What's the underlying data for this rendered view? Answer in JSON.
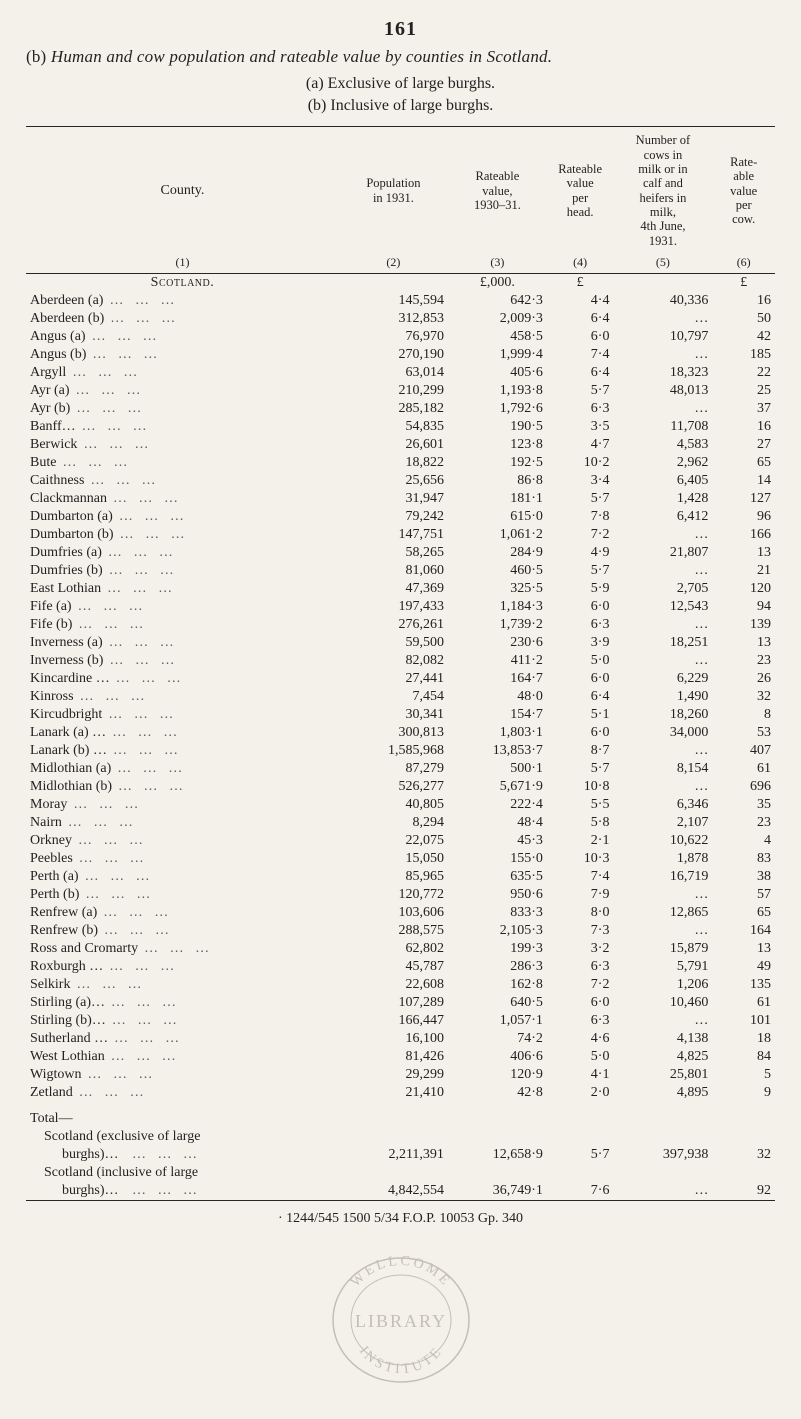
{
  "page_number": "161",
  "title_prefix": "(b) ",
  "title_italic": "Human and cow population and rateable value by counties in Scotland.",
  "subtitle_lines": [
    "(a) Exclusive of large burghs.",
    "(b) Inclusive of large burghs."
  ],
  "columns": {
    "county": "County.",
    "pop": "Population\nin 1931.",
    "rateable_value": "Rateable\nvalue,\n1930–31.",
    "rateable_per_head": "Rateable\nvalue\nper\nhead.",
    "cows": "Number of\ncows in\nmilk or in\ncalf and\nheifers in\nmilk,\n4th June,\n1931.",
    "rate_per_cow": "Rate-\nable\nvalue\nper\ncow."
  },
  "col_index": [
    "(1)",
    "(2)",
    "(3)",
    "(4)",
    "(5)",
    "(6)"
  ],
  "currency_row": [
    "",
    "",
    "£,000.",
    "£",
    "",
    "£"
  ],
  "scotland_label": "Scotland.",
  "rows": [
    {
      "name": "Aberdeen (a)",
      "pop": "145,594",
      "rv": "642·3",
      "ph": "4·4",
      "cows": "40,336",
      "pc": "16"
    },
    {
      "name": "Aberdeen (b)",
      "pop": "312,853",
      "rv": "2,009·3",
      "ph": "6·4",
      "cows": "…",
      "pc": "50"
    },
    {
      "name": "Angus (a)",
      "pop": "76,970",
      "rv": "458·5",
      "ph": "6·0",
      "cows": "10,797",
      "pc": "42"
    },
    {
      "name": "Angus (b)",
      "pop": "270,190",
      "rv": "1,999·4",
      "ph": "7·4",
      "cows": "…",
      "pc": "185"
    },
    {
      "name": "Argyll",
      "pop": "63,014",
      "rv": "405·6",
      "ph": "6·4",
      "cows": "18,323",
      "pc": "22"
    },
    {
      "name": "Ayr (a)",
      "pop": "210,299",
      "rv": "1,193·8",
      "ph": "5·7",
      "cows": "48,013",
      "pc": "25"
    },
    {
      "name": "Ayr (b)",
      "pop": "285,182",
      "rv": "1,792·6",
      "ph": "6·3",
      "cows": "…",
      "pc": "37"
    },
    {
      "name": "Banff…",
      "pop": "54,835",
      "rv": "190·5",
      "ph": "3·5",
      "cows": "11,708",
      "pc": "16"
    },
    {
      "name": "Berwick",
      "pop": "26,601",
      "rv": "123·8",
      "ph": "4·7",
      "cows": "4,583",
      "pc": "27"
    },
    {
      "name": "Bute",
      "pop": "18,822",
      "rv": "192·5",
      "ph": "10·2",
      "cows": "2,962",
      "pc": "65"
    },
    {
      "name": "Caithness",
      "pop": "25,656",
      "rv": "86·8",
      "ph": "3·4",
      "cows": "6,405",
      "pc": "14"
    },
    {
      "name": "Clackmannan",
      "pop": "31,947",
      "rv": "181·1",
      "ph": "5·7",
      "cows": "1,428",
      "pc": "127"
    },
    {
      "name": "Dumbarton (a)",
      "pop": "79,242",
      "rv": "615·0",
      "ph": "7·8",
      "cows": "6,412",
      "pc": "96"
    },
    {
      "name": "Dumbarton (b)",
      "pop": "147,751",
      "rv": "1,061·2",
      "ph": "7·2",
      "cows": "…",
      "pc": "166"
    },
    {
      "name": "Dumfries (a)",
      "pop": "58,265",
      "rv": "284·9",
      "ph": "4·9",
      "cows": "21,807",
      "pc": "13"
    },
    {
      "name": "Dumfries (b)",
      "pop": "81,060",
      "rv": "460·5",
      "ph": "5·7",
      "cows": "…",
      "pc": "21"
    },
    {
      "name": "East Lothian",
      "pop": "47,369",
      "rv": "325·5",
      "ph": "5·9",
      "cows": "2,705",
      "pc": "120"
    },
    {
      "name": "Fife (a)",
      "pop": "197,433",
      "rv": "1,184·3",
      "ph": "6·0",
      "cows": "12,543",
      "pc": "94"
    },
    {
      "name": "Fife (b)",
      "pop": "276,261",
      "rv": "1,739·2",
      "ph": "6·3",
      "cows": "…",
      "pc": "139"
    },
    {
      "name": "Inverness (a)",
      "pop": "59,500",
      "rv": "230·6",
      "ph": "3·9",
      "cows": "18,251",
      "pc": "13"
    },
    {
      "name": "Inverness (b)",
      "pop": "82,082",
      "rv": "411·2",
      "ph": "5·0",
      "cows": "…",
      "pc": "23"
    },
    {
      "name": "Kincardine …",
      "pop": "27,441",
      "rv": "164·7",
      "ph": "6·0",
      "cows": "6,229",
      "pc": "26"
    },
    {
      "name": "Kinross",
      "pop": "7,454",
      "rv": "48·0",
      "ph": "6·4",
      "cows": "1,490",
      "pc": "32"
    },
    {
      "name": "Kircudbright",
      "pop": "30,341",
      "rv": "154·7",
      "ph": "5·1",
      "cows": "18,260",
      "pc": "8"
    },
    {
      "name": "Lanark (a) …",
      "pop": "300,813",
      "rv": "1,803·1",
      "ph": "6·0",
      "cows": "34,000",
      "pc": "53"
    },
    {
      "name": "Lanark (b) …",
      "pop": "1,585,968",
      "rv": "13,853·7",
      "ph": "8·7",
      "cows": "…",
      "pc": "407"
    },
    {
      "name": "Midlothian (a)",
      "pop": "87,279",
      "rv": "500·1",
      "ph": "5·7",
      "cows": "8,154",
      "pc": "61"
    },
    {
      "name": "Midlothian (b)",
      "pop": "526,277",
      "rv": "5,671·9",
      "ph": "10·8",
      "cows": "…",
      "pc": "696"
    },
    {
      "name": "Moray",
      "pop": "40,805",
      "rv": "222·4",
      "ph": "5·5",
      "cows": "6,346",
      "pc": "35"
    },
    {
      "name": "Nairn",
      "pop": "8,294",
      "rv": "48·4",
      "ph": "5·8",
      "cows": "2,107",
      "pc": "23"
    },
    {
      "name": "Orkney",
      "pop": "22,075",
      "rv": "45·3",
      "ph": "2·1",
      "cows": "10,622",
      "pc": "4"
    },
    {
      "name": "Peebles",
      "pop": "15,050",
      "rv": "155·0",
      "ph": "10·3",
      "cows": "1,878",
      "pc": "83"
    },
    {
      "name": "Perth (a)",
      "pop": "85,965",
      "rv": "635·5",
      "ph": "7·4",
      "cows": "16,719",
      "pc": "38"
    },
    {
      "name": "Perth (b)",
      "pop": "120,772",
      "rv": "950·6",
      "ph": "7·9",
      "cows": "…",
      "pc": "57"
    },
    {
      "name": "Renfrew (a)",
      "pop": "103,606",
      "rv": "833·3",
      "ph": "8·0",
      "cows": "12,865",
      "pc": "65"
    },
    {
      "name": "Renfrew (b)",
      "pop": "288,575",
      "rv": "2,105·3",
      "ph": "7·3",
      "cows": "…",
      "pc": "164"
    },
    {
      "name": "Ross and Cromarty",
      "pop": "62,802",
      "rv": "199·3",
      "ph": "3·2",
      "cows": "15,879",
      "pc": "13"
    },
    {
      "name": "Roxburgh …",
      "pop": "45,787",
      "rv": "286·3",
      "ph": "6·3",
      "cows": "5,791",
      "pc": "49"
    },
    {
      "name": "Selkirk",
      "pop": "22,608",
      "rv": "162·8",
      "ph": "7·2",
      "cows": "1,206",
      "pc": "135"
    },
    {
      "name": "Stirling (a)…",
      "pop": "107,289",
      "rv": "640·5",
      "ph": "6·0",
      "cows": "10,460",
      "pc": "61"
    },
    {
      "name": "Stirling (b)…",
      "pop": "166,447",
      "rv": "1,057·1",
      "ph": "6·3",
      "cows": "…",
      "pc": "101"
    },
    {
      "name": "Sutherland …",
      "pop": "16,100",
      "rv": "74·2",
      "ph": "4·6",
      "cows": "4,138",
      "pc": "18"
    },
    {
      "name": "West Lothian",
      "pop": "81,426",
      "rv": "406·6",
      "ph": "5·0",
      "cows": "4,825",
      "pc": "84"
    },
    {
      "name": "Wigtown",
      "pop": "29,299",
      "rv": "120·9",
      "ph": "4·1",
      "cows": "25,801",
      "pc": "5"
    },
    {
      "name": "Zetland",
      "pop": "21,410",
      "rv": "42·8",
      "ph": "2·0",
      "cows": "4,895",
      "pc": "9"
    }
  ],
  "totals": {
    "label": "Total—",
    "r1_label": "Scotland  (exclusive  of  large",
    "r1b_label": "burghs)…",
    "r1": {
      "pop": "2,211,391",
      "rv": "12,658·9",
      "ph": "5·7",
      "cows": "397,938",
      "pc": "32"
    },
    "r2_label": "Scotland  (inclusive  of  large",
    "r2b_label": "burghs)…",
    "r2": {
      "pop": "4,842,554",
      "rv": "36,749·1",
      "ph": "7·6",
      "cows": "…",
      "pc": "92"
    }
  },
  "footer": "· 1244/545  1500  5/34  F.O.P.  10053  Gp. 340",
  "stamp": {
    "top_arc": "WELLCOME",
    "center": "LIBRARY",
    "bottom_arc": "INSTITUTE",
    "stroke": "#8a8478"
  },
  "colors": {
    "rule": "#262626",
    "text": "#222222",
    "bg": "#f4f1ea"
  }
}
